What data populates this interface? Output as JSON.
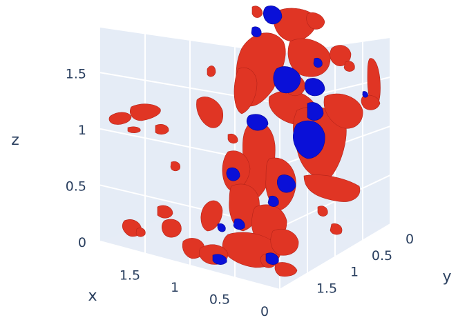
{
  "chart_data": {
    "type": "isosurface-3d",
    "title": "",
    "axes": {
      "x": {
        "title": "x",
        "ticks": [
          "0",
          "0.5",
          "1",
          "1.5"
        ],
        "range": [
          0,
          2
        ]
      },
      "y": {
        "title": "y",
        "ticks": [
          "0",
          "0.5",
          "1",
          "1.5"
        ],
        "range": [
          0,
          2
        ]
      },
      "z": {
        "title": "z",
        "ticks": [
          "0",
          "0.5",
          "1",
          "1.5"
        ],
        "range": [
          0,
          1.9
        ]
      }
    },
    "grid": true,
    "scene_background": "#e5ecf6",
    "gridline_color": "#ffffff",
    "series": [
      {
        "color": "#e03524",
        "kind": "positive isosurface"
      },
      {
        "color": "#0a10d8",
        "kind": "negative isosurface"
      }
    ]
  }
}
